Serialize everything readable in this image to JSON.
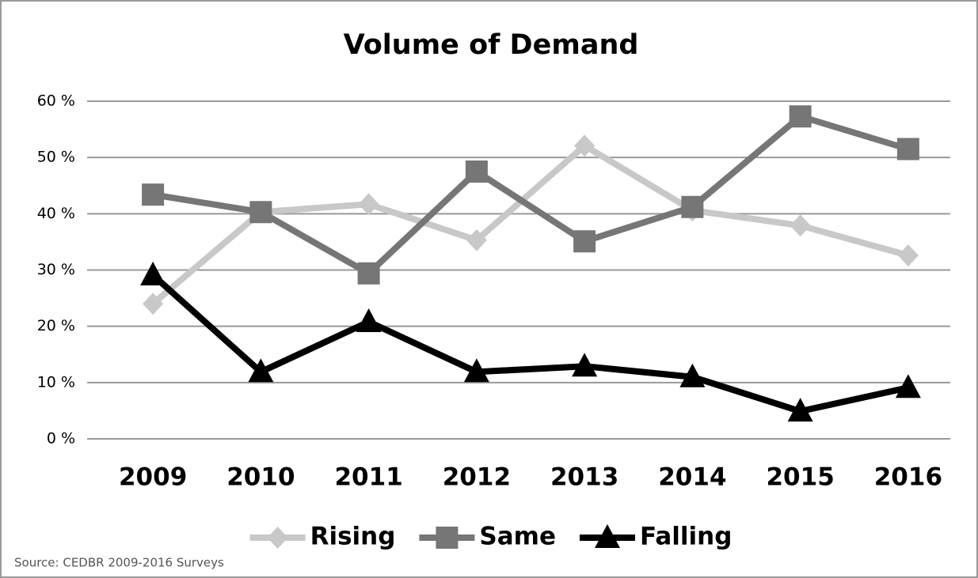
{
  "chart_data": {
    "type": "line",
    "title": "Volume of Demand",
    "categories": [
      "2009",
      "2010",
      "2011",
      "2012",
      "2013",
      "2014",
      "2015",
      "2016"
    ],
    "series": [
      {
        "name": "Rising",
        "color": "#c8c8c8",
        "marker": "diamond",
        "values": [
          24.0,
          40.3,
          41.7,
          35.3,
          52.1,
          40.6,
          37.9,
          32.6
        ]
      },
      {
        "name": "Same",
        "color": "#767676",
        "marker": "square",
        "values": [
          43.4,
          40.3,
          29.4,
          47.5,
          35.1,
          41.2,
          57.3,
          51.5
        ]
      },
      {
        "name": "Falling",
        "color": "#000000",
        "marker": "triangle",
        "values": [
          29.1,
          11.9,
          20.8,
          11.9,
          12.9,
          11.0,
          4.9,
          9.1
        ]
      }
    ],
    "ylim": [
      0,
      60
    ],
    "yticks": [
      {
        "value": 0,
        "label": "0 %"
      },
      {
        "value": 10,
        "label": "10 %"
      },
      {
        "value": 20,
        "label": "20 %"
      },
      {
        "value": 30,
        "label": "30 %"
      },
      {
        "value": 40,
        "label": "40 %"
      },
      {
        "value": 50,
        "label": "50 %"
      },
      {
        "value": 60,
        "label": "60 %"
      }
    ],
    "grid": true,
    "legend": "bottom",
    "annotation": "Source: CEDBR 2009-2016 Surveys"
  }
}
